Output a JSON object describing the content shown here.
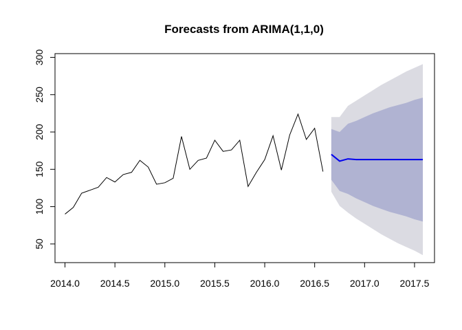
{
  "chart_data": {
    "type": "line",
    "title": "Forecasts from ARIMA(1,1,0)",
    "xlabel": "",
    "ylabel": "",
    "xlim": [
      2013.9,
      2017.7
    ],
    "ylim": [
      25,
      305
    ],
    "x_ticks": [
      {
        "value": 2014.0,
        "label": "2014.0"
      },
      {
        "value": 2014.5,
        "label": "2014.5"
      },
      {
        "value": 2015.0,
        "label": "2015.0"
      },
      {
        "value": 2015.5,
        "label": "2015.5"
      },
      {
        "value": 2016.0,
        "label": "2016.0"
      },
      {
        "value": 2016.5,
        "label": "2016.5"
      },
      {
        "value": 2017.0,
        "label": "2017.0"
      },
      {
        "value": 2017.5,
        "label": "2017.5"
      }
    ],
    "y_ticks": [
      {
        "value": 50,
        "label": "50"
      },
      {
        "value": 100,
        "label": "100"
      },
      {
        "value": 150,
        "label": "150"
      },
      {
        "value": 200,
        "label": "200"
      },
      {
        "value": 250,
        "label": "250"
      },
      {
        "value": 300,
        "label": "300"
      }
    ],
    "grid": false,
    "colors": {
      "observed": "#000000",
      "forecast": "#0000ee",
      "band_80": "#b0b3d2",
      "band_95": "#dbdbe2"
    },
    "observed": {
      "x": [
        2014.0,
        2014.0833,
        2014.1667,
        2014.25,
        2014.3333,
        2014.4167,
        2014.5,
        2014.5833,
        2014.6667,
        2014.75,
        2014.8333,
        2014.9167,
        2015.0,
        2015.0833,
        2015.1667,
        2015.25,
        2015.3333,
        2015.4167,
        2015.5,
        2015.5833,
        2015.6667,
        2015.75,
        2015.8333,
        2015.9167,
        2016.0,
        2016.0833,
        2016.1667,
        2016.25,
        2016.3333,
        2016.4167,
        2016.5,
        2016.5833
      ],
      "y": [
        90,
        99,
        118,
        122,
        126,
        139,
        133,
        143,
        146,
        162,
        153,
        130,
        132,
        138,
        194,
        150,
        162,
        165,
        189,
        174,
        176,
        189,
        127,
        146,
        163,
        195,
        149,
        196,
        224,
        190,
        205,
        147
      ]
    },
    "forecast": {
      "x": [
        2016.6667,
        2016.75,
        2016.8333,
        2016.9167,
        2017.0,
        2017.0833,
        2017.1667,
        2017.25,
        2017.3333,
        2017.4167,
        2017.5,
        2017.5833
      ],
      "mean": [
        170,
        161,
        164,
        163,
        163,
        163,
        163,
        163,
        163,
        163,
        163,
        163
      ],
      "lo80": [
        136,
        121,
        117,
        111,
        106,
        101,
        97,
        93,
        90,
        87,
        83,
        80
      ],
      "hi80": [
        204,
        200,
        211,
        215,
        220,
        225,
        229,
        233,
        236,
        239,
        243,
        246
      ],
      "lo95": [
        120,
        101,
        92,
        84,
        77,
        70,
        63,
        57,
        51,
        46,
        41,
        35
      ],
      "hi95": [
        220,
        220,
        235,
        242,
        249,
        256,
        263,
        269,
        275,
        281,
        286,
        291
      ]
    }
  }
}
